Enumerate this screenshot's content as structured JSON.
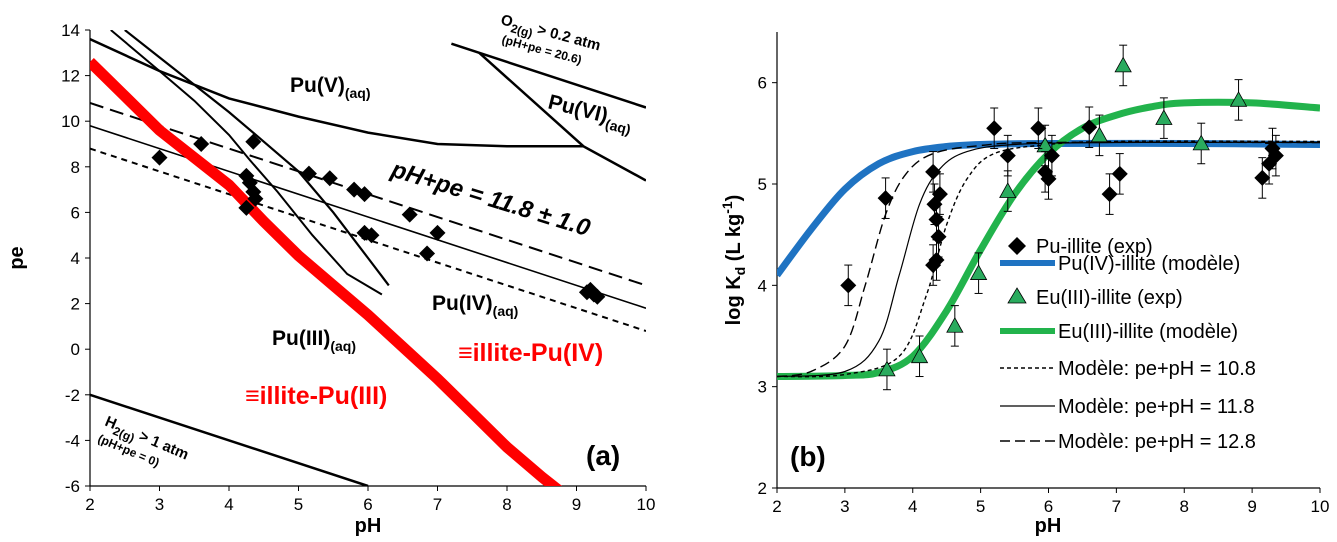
{
  "chart_data": [
    {
      "type": "line",
      "panel_label": "(a)",
      "xlabel": "pH",
      "ylabel": "pe",
      "xlim": [
        2,
        10
      ],
      "ylim": [
        -6,
        14
      ],
      "xticks": [
        "2",
        "3",
        "4",
        "5",
        "6",
        "7",
        "8",
        "9",
        "10"
      ],
      "yticks": [
        "-6",
        "-4",
        "-2",
        "0",
        "2",
        "4",
        "6",
        "8",
        "10",
        "12",
        "14"
      ],
      "regions": [
        {
          "name": "Pu(V)",
          "sub": "(aq)"
        },
        {
          "name": "Pu(VI)",
          "sub": "(aq)"
        },
        {
          "name": "Pu(IV)",
          "sub": "(aq)"
        },
        {
          "name": "Pu(III)",
          "sub": "(aq)"
        }
      ],
      "sorbed_labels": [
        "≡illite-Pu(IV)",
        "≡illite-Pu(III)"
      ],
      "o2_label": {
        "main": "O",
        "sub": "2(g)",
        "rest": " > 0.2 atm",
        "note": "(pH+pe = 20.6)"
      },
      "h2_label": {
        "main": "H",
        "sub": "2(g)",
        "rest": " > 1 atm",
        "note": "(pH+pe = 0)"
      },
      "band_label": "pH+pe = 11.8 ± 1.0",
      "boundaries": {
        "o2_line": [
          [
            7.2,
            13.4
          ],
          [
            10,
            10.6
          ]
        ],
        "h2_line": [
          [
            2,
            -2.0
          ],
          [
            6,
            -6.0
          ]
        ],
        "pe_10_8": [
          [
            2,
            8.8
          ],
          [
            10,
            0.8
          ]
        ],
        "pe_11_8": [
          [
            2,
            9.8
          ],
          [
            10,
            1.8
          ]
        ],
        "pe_12_8": [
          [
            2,
            10.8
          ],
          [
            10,
            2.8
          ]
        ],
        "v_iv": [
          [
            2,
            13.6
          ],
          [
            3,
            12.2
          ],
          [
            4,
            11.0
          ],
          [
            5,
            10.2
          ],
          [
            6,
            9.5
          ],
          [
            7,
            9.0
          ],
          [
            8,
            8.9
          ],
          [
            9.1,
            8.9
          ]
        ],
        "vi_v": [
          [
            7.6,
            13.0
          ],
          [
            9.1,
            8.9
          ],
          [
            10,
            7.4
          ]
        ],
        "v_iii_top": [
          [
            2.5,
            14.0
          ],
          [
            3,
            12.8
          ],
          [
            3.5,
            11.6
          ],
          [
            4,
            10.4
          ],
          [
            4.5,
            9.1
          ],
          [
            5,
            7.8
          ],
          [
            5.5,
            6.0
          ],
          [
            6,
            4.0
          ],
          [
            6.3,
            2.8
          ]
        ],
        "iv_iii": [
          [
            2.3,
            14.0
          ],
          [
            3,
            12.2
          ],
          [
            3.5,
            10.9
          ],
          [
            4,
            9.4
          ],
          [
            4.3,
            8.3
          ],
          [
            4.7,
            6.9
          ],
          [
            5.2,
            5.0
          ],
          [
            5.7,
            3.3
          ],
          [
            6.2,
            2.4
          ]
        ],
        "sorbed_iv_iii": [
          [
            2,
            12.6
          ],
          [
            2.5,
            11.1
          ],
          [
            3,
            9.6
          ],
          [
            3.5,
            8.4
          ],
          [
            4,
            7.2
          ],
          [
            4.5,
            5.6
          ],
          [
            5,
            4.1
          ],
          [
            5.5,
            2.8
          ],
          [
            6,
            1.5
          ],
          [
            6.5,
            0.1
          ],
          [
            7,
            -1.3
          ],
          [
            7.5,
            -2.8
          ],
          [
            8,
            -4.3
          ],
          [
            8.5,
            -5.6
          ],
          [
            8.75,
            -6.2
          ]
        ]
      },
      "points": [
        [
          3.0,
          8.4
        ],
        [
          3.6,
          9.0
        ],
        [
          4.35,
          9.1
        ],
        [
          4.25,
          7.6
        ],
        [
          4.3,
          7.3
        ],
        [
          4.35,
          6.9
        ],
        [
          4.38,
          6.6
        ],
        [
          4.25,
          6.2
        ],
        [
          5.15,
          7.7
        ],
        [
          5.45,
          7.5
        ],
        [
          5.8,
          7.0
        ],
        [
          5.95,
          6.8
        ],
        [
          5.95,
          5.1
        ],
        [
          6.05,
          5.0
        ],
        [
          6.6,
          5.9
        ],
        [
          6.85,
          4.2
        ],
        [
          7.0,
          5.1
        ],
        [
          9.15,
          2.5
        ],
        [
          9.25,
          2.4
        ],
        [
          9.3,
          2.3
        ],
        [
          9.2,
          2.6
        ]
      ],
      "colors": {
        "sorbed": "#ff0000",
        "line": "#000000",
        "point": "#000000"
      }
    },
    {
      "type": "line",
      "panel_label": "(b)",
      "xlabel": "pH",
      "ylabel_main": "log K",
      "ylabel_sub": "d",
      "ylabel_unit": " (L kg",
      "ylabel_sup": "-1",
      "ylabel_end": ")",
      "xlim": [
        2,
        10
      ],
      "ylim": [
        2,
        6.5
      ],
      "xticks": [
        "2",
        "3",
        "4",
        "5",
        "6",
        "7",
        "8",
        "9",
        "10"
      ],
      "yticks": [
        "2",
        "3",
        "4",
        "5",
        "6"
      ],
      "legend": {
        "placement": "right",
        "entries": [
          {
            "key": "pu_exp",
            "label": "Pu-illite (exp)"
          },
          {
            "key": "pu_model",
            "label": "Pu(IV)-illite (modèle)"
          },
          {
            "key": "eu_exp",
            "label": "Eu(III)-illite (exp)"
          },
          {
            "key": "eu_model",
            "label": "Eu(III)-illite (modèle)"
          },
          {
            "key": "m108",
            "label": "Modèle: pe+pH = 10.8"
          },
          {
            "key": "m118",
            "label": "Modèle: pe+pH = 11.8"
          },
          {
            "key": "m128",
            "label": "Modèle: pe+pH = 12.8"
          }
        ]
      },
      "series": [
        {
          "key": "pu_model",
          "color": "#1f73c2",
          "points": [
            [
              2,
              4.1
            ],
            [
              2.5,
              4.55
            ],
            [
              3,
              4.95
            ],
            [
              3.5,
              5.2
            ],
            [
              4,
              5.32
            ],
            [
              4.5,
              5.37
            ],
            [
              5,
              5.39
            ],
            [
              6,
              5.4
            ],
            [
              8,
              5.4
            ],
            [
              10,
              5.39
            ]
          ]
        },
        {
          "key": "eu_model",
          "color": "#22b34c",
          "points": [
            [
              2,
              3.1
            ],
            [
              3,
              3.11
            ],
            [
              3.5,
              3.14
            ],
            [
              4,
              3.3
            ],
            [
              4.5,
              3.75
            ],
            [
              5,
              4.35
            ],
            [
              5.5,
              4.9
            ],
            [
              6,
              5.3
            ],
            [
              6.5,
              5.55
            ],
            [
              7,
              5.68
            ],
            [
              7.5,
              5.76
            ],
            [
              8,
              5.8
            ],
            [
              9,
              5.8
            ],
            [
              10,
              5.75
            ]
          ]
        },
        {
          "key": "m128",
          "color": "#000000",
          "points": [
            [
              2,
              3.1
            ],
            [
              2.5,
              3.15
            ],
            [
              3,
              3.4
            ],
            [
              3.3,
              4.0
            ],
            [
              3.6,
              4.7
            ],
            [
              3.9,
              5.1
            ],
            [
              4.3,
              5.3
            ],
            [
              5,
              5.38
            ],
            [
              6,
              5.41
            ],
            [
              10,
              5.41
            ]
          ]
        },
        {
          "key": "m118",
          "color": "#000000",
          "points": [
            [
              2,
              3.1
            ],
            [
              3,
              3.15
            ],
            [
              3.5,
              3.45
            ],
            [
              3.8,
              4.1
            ],
            [
              4.1,
              4.8
            ],
            [
              4.4,
              5.15
            ],
            [
              4.8,
              5.32
            ],
            [
              5.5,
              5.39
            ],
            [
              7,
              5.41
            ],
            [
              10,
              5.41
            ]
          ]
        },
        {
          "key": "m108",
          "color": "#000000",
          "points": [
            [
              2,
              3.1
            ],
            [
              3,
              3.12
            ],
            [
              3.8,
              3.3
            ],
            [
              4.2,
              3.9
            ],
            [
              4.5,
              4.6
            ],
            [
              4.8,
              5.05
            ],
            [
              5.2,
              5.3
            ],
            [
              6,
              5.39
            ],
            [
              7,
              5.42
            ],
            [
              10,
              5.42
            ]
          ]
        }
      ],
      "pu_exp": [
        [
          3.05,
          4.0,
          0.2
        ],
        [
          3.6,
          4.86,
          0.2
        ],
        [
          4.3,
          5.12,
          0.2
        ],
        [
          4.32,
          4.8,
          0.2
        ],
        [
          4.35,
          4.65,
          0.2
        ],
        [
          4.38,
          4.48,
          0.2
        ],
        [
          4.3,
          4.2,
          0.2
        ],
        [
          4.35,
          4.25,
          0.2
        ],
        [
          4.4,
          4.9,
          0.2
        ],
        [
          5.2,
          5.55,
          0.2
        ],
        [
          5.4,
          5.28,
          0.2
        ],
        [
          5.85,
          5.55,
          0.2
        ],
        [
          5.95,
          5.12,
          0.2
        ],
        [
          6.0,
          5.05,
          0.2
        ],
        [
          6.05,
          5.28,
          0.2
        ],
        [
          6.6,
          5.56,
          0.2
        ],
        [
          6.9,
          4.9,
          0.2
        ],
        [
          7.05,
          5.1,
          0.2
        ],
        [
          9.15,
          5.06,
          0.2
        ],
        [
          9.25,
          5.2,
          0.2
        ],
        [
          9.3,
          5.35,
          0.2
        ],
        [
          9.35,
          5.28,
          0.2
        ]
      ],
      "eu_exp": [
        [
          3.62,
          3.17,
          0.2
        ],
        [
          4.1,
          3.3,
          0.2
        ],
        [
          4.62,
          3.6,
          0.2
        ],
        [
          4.97,
          4.12,
          0.2
        ],
        [
          5.4,
          4.93,
          0.2
        ],
        [
          5.95,
          5.38,
          0.2
        ],
        [
          6.75,
          5.48,
          0.2
        ],
        [
          7.1,
          6.17,
          0.2
        ],
        [
          7.7,
          5.65,
          0.2
        ],
        [
          8.25,
          5.4,
          0.2
        ],
        [
          8.8,
          5.83,
          0.2
        ]
      ],
      "colors": {
        "pu_marker": "#000000",
        "eu_marker": "#2aab5e"
      }
    }
  ]
}
